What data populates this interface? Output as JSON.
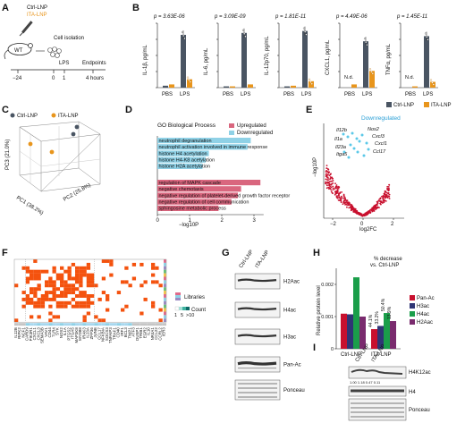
{
  "panels": [
    "A",
    "B",
    "C",
    "D",
    "E",
    "F",
    "G",
    "H",
    "I"
  ],
  "colors": {
    "ctrl": "#4a5563",
    "ita": "#e8951c",
    "up": "#d9667e",
    "down": "#8fd1e6",
    "red": "#c8102e",
    "cyan": "#5bc8e8",
    "heat": "#f4520e",
    "green": "#1a9e4a",
    "navy": "#2f3575",
    "purple": "#7a2b6e"
  },
  "panelA": {
    "treatment_1": "Ctrl-LNP",
    "treatment_2": "ITA-LNP",
    "mouse": "WT",
    "cell_isolation": "Cell isolation",
    "lps": "LPS",
    "endpoints": "Endpoints",
    "t_minus24": "−24",
    "t0": "0",
    "t1": "1",
    "t4": "4 hours"
  },
  "panelB": {
    "xcats": [
      "PBS",
      "LPS"
    ],
    "legend": [
      "Ctrl-LNP",
      "ITA-LNP"
    ],
    "charts": [
      {
        "ylabel": "IL-1β, pg/mL",
        "p": "p = 3.63E-06",
        "ctrl": [
          0.03,
          0.82
        ],
        "ita": [
          0.05,
          0.13
        ],
        "nd": []
      },
      {
        "ylabel": "IL-6, pg/mL",
        "p": "p = 3.09E-09",
        "ctrl": [
          0.02,
          0.85
        ],
        "ita": [
          0.02,
          0.05
        ],
        "nd": []
      },
      {
        "ylabel": "IL-12p70, pg/mL",
        "p": "p = 1.81E-11",
        "ctrl": [
          0.02,
          0.88
        ],
        "ita": [
          0.03,
          0.1
        ],
        "nd": []
      },
      {
        "ylabel": "CXCL1, pg/mL",
        "p": "p = 4.49E-06",
        "nd_label": "N.d.",
        "ctrl": [
          0.0,
          0.72
        ],
        "ita": [
          0.05,
          0.26
        ],
        "nd": [
          0
        ]
      },
      {
        "ylabel": "TNFα, pg/mL",
        "p": "p = 1.45E-11",
        "nd_label": "N.d.",
        "ctrl": [
          0.0,
          0.8
        ],
        "ita": [
          0.02,
          0.09
        ],
        "nd": [
          0
        ]
      }
    ]
  },
  "panelC": {
    "legend": [
      "Ctrl-LNP",
      "ITA-LNP"
    ],
    "pc1": "PC1 (38.2%)",
    "pc2": "PC2 (25.8%)",
    "pc3": "PC3 (21.0%)"
  },
  "panelD": {
    "title": "GO Biological Process",
    "legend": [
      "Upregulated",
      "Downregulated"
    ],
    "xlabel": "−log10P",
    "ticks": [
      "0",
      "1",
      "2",
      "3"
    ],
    "terms": [
      {
        "label": "neutrophil degranulation",
        "value": 2.9,
        "dir": "down"
      },
      {
        "label": "neutrophil activation involved in immune response",
        "value": 2.8,
        "dir": "down"
      },
      {
        "label": "histone H4 acetylation",
        "value": 1.6,
        "dir": "down"
      },
      {
        "label": "histone H4-K8 acetylation",
        "value": 1.5,
        "dir": "down"
      },
      {
        "label": "histone H2A acetylation",
        "value": 1.4,
        "dir": "down"
      },
      {
        "label": "regulation of MAPK cascade",
        "value": 3.2,
        "dir": "up"
      },
      {
        "label": "negative chemotaxis",
        "value": 2.6,
        "dir": "up"
      },
      {
        "label": "negative regulation of platelet-derived growth factor receptor",
        "value": 2.5,
        "dir": "up"
      },
      {
        "label": "negative regulation of cell communication",
        "value": 2.3,
        "dir": "up"
      },
      {
        "label": "sphingosine metabolic process",
        "value": 1.9,
        "dir": "up"
      }
    ]
  },
  "panelE": {
    "title": "Downregulated",
    "xlabel": "log2FC",
    "ylabel": "−log10P",
    "xticks": [
      "−2",
      "0",
      "2"
    ],
    "genes": [
      "Il12b",
      "Nos2",
      "Il1a",
      "Cxcl3",
      "Il23a",
      "Cxcl1",
      "Itga5",
      "Ccl17"
    ]
  },
  "panelF": {
    "legend_libraries": "Libraries",
    "legend_count": "Count",
    "count_ticks": [
      "1",
      "5",
      ">10"
    ],
    "genes": [
      "IL12B",
      "RIPK2",
      "NCF1",
      "CARD9",
      "PIK3R1",
      "CXCL1",
      "CXCL3",
      "SEMA3B",
      "VAV1",
      "CD44",
      "TLR4",
      "SYK",
      "NOS2",
      "IL1A",
      "PTGS2",
      "ITGA5",
      "MAP3K8",
      "MYD88",
      "IRAK3",
      "IL23A",
      "ZFP36",
      "JUNB",
      "CCL17",
      "NFKBIA",
      "SOCS3",
      "TNFAIP3",
      "TRAF1",
      "CD40",
      "IRF1",
      "BCL3",
      "TNIP1",
      "ATF3",
      "DUSP1",
      "TRIB1",
      "EGR2",
      "IL10",
      "NR4A1",
      "CCL22",
      "CCRL2",
      "IER3"
    ]
  },
  "panelG": {
    "lanes": [
      "Ctrl-LNP",
      "ITA-LNP"
    ],
    "blots": [
      "H2Aac",
      "H4ac",
      "H3ac",
      "Pan-Ac",
      "Ponceau"
    ]
  },
  "panelH": {
    "title_1": "% decrease",
    "title_2": "vs. Ctrl-LNP",
    "ylabel": "Relative protein level",
    "yticks": [
      "0",
      "0.001",
      "0.002"
    ],
    "ylim": [
      0,
      0.0025
    ],
    "categories": [
      "Ctrl-LNP",
      "ITA-LNP"
    ],
    "series": [
      {
        "name": "Pan-Ac",
        "values": [
          0.00109,
          0.00061
        ],
        "color": "#c8102e"
      },
      {
        "name": "H3ac",
        "values": [
          0.00107,
          0.00071
        ],
        "color": "#2f3575"
      },
      {
        "name": "H4ac",
        "values": [
          0.00222,
          0.00111
        ],
        "color": "#1a9e4a"
      },
      {
        "name": "H2Aac",
        "values": [
          0.001,
          0.00086
        ],
        "color": "#7a2b6e"
      }
    ],
    "pct": [
      "44.1%",
      "33.2%",
      "50.4%",
      "13.9%"
    ]
  },
  "panelI": {
    "lanes": [
      "Ctrl-LNP",
      "ITA-LNP"
    ],
    "blots": [
      "H4K12ac",
      "H4",
      "Ponceau"
    ],
    "quant": "1.00  1.18  0.47 0.11"
  }
}
